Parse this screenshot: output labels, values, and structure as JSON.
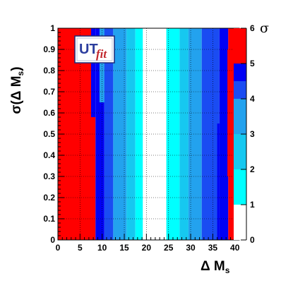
{
  "chart_data": {
    "type": "heatmap",
    "xlabel": "Δ M",
    "xlabel_sub": "s",
    "ylabel": "σ(Δ M",
    "ylabel_sub": "s",
    "ylabel_close": ")",
    "xlim": [
      0,
      41
    ],
    "ylim": [
      0,
      1
    ],
    "x_ticks": [
      "0",
      "5",
      "10",
      "15",
      "20",
      "25",
      "30",
      "35",
      "40"
    ],
    "y_ticks": [
      "0",
      "0.1",
      "0.2",
      "0.3",
      "0.4",
      "0.5",
      "0.6",
      "0.7",
      "0.8",
      "0.9",
      "1"
    ],
    "colorbar": {
      "title": "σ",
      "ticks": [
        "0",
        "1",
        "2",
        "3",
        "4",
        "5",
        "6"
      ],
      "range": [
        0,
        6
      ],
      "bands": [
        {
          "from": 0,
          "to": 1,
          "color": "#ffffff"
        },
        {
          "from": 1,
          "to": 2,
          "color": "#00ffff"
        },
        {
          "from": 2,
          "to": 3,
          "color": "#16c8f0"
        },
        {
          "from": 3,
          "to": 4,
          "color": "#23a2ee"
        },
        {
          "from": 4,
          "to": 5,
          "color": "#1a4cf2"
        },
        {
          "from": 5,
          "to": 6,
          "color": "#0000f5"
        },
        {
          "from": 6,
          "to": 7,
          "color": "#ff0000"
        }
      ]
    },
    "columns": [
      {
        "x0": 0,
        "x1": 7.5,
        "sigma": 6.5
      },
      {
        "x0": 7.5,
        "x1": 8.5,
        "sigma": 6.5,
        "top": 0.58
      },
      {
        "x0": 8.5,
        "x1": 10.5,
        "sigma": 5.5
      },
      {
        "x0": 10.5,
        "x1": 12.5,
        "sigma": 4.5
      },
      {
        "x0": 12.5,
        "x1": 15.5,
        "sigma": 3.5
      },
      {
        "x0": 15.5,
        "x1": 17.5,
        "sigma": 2.5
      },
      {
        "x0": 17.5,
        "x1": 19.2,
        "sigma": 1.5
      },
      {
        "x0": 19.2,
        "x1": 24.5,
        "sigma": 0.5
      },
      {
        "x0": 24.5,
        "x1": 27.5,
        "sigma": 1.5
      },
      {
        "x0": 27.5,
        "x1": 29.5,
        "sigma": 2.5
      },
      {
        "x0": 29.5,
        "x1": 32.5,
        "sigma": 3.5
      },
      {
        "x0": 32.5,
        "x1": 36.5,
        "sigma": 4.5
      },
      {
        "x0": 36.5,
        "x1": 38.5,
        "sigma": 5.5
      },
      {
        "x0": 38.5,
        "x1": 41,
        "sigma": 6.5
      }
    ],
    "edge_steps": [
      {
        "x0": 9.4,
        "x1": 10.5,
        "y0": 0.65,
        "y1": 1.0,
        "sigma": 3.5
      },
      {
        "x0": 36.0,
        "x1": 36.5,
        "y0": 0.0,
        "y1": 0.55,
        "sigma": 5.5
      },
      {
        "x0": 38.3,
        "x1": 38.5,
        "y0": 0.3,
        "y1": 0.9,
        "sigma": 6.5
      }
    ],
    "grid": "dotted"
  },
  "logo": {
    "ut": "UT",
    "fit": "fit"
  }
}
